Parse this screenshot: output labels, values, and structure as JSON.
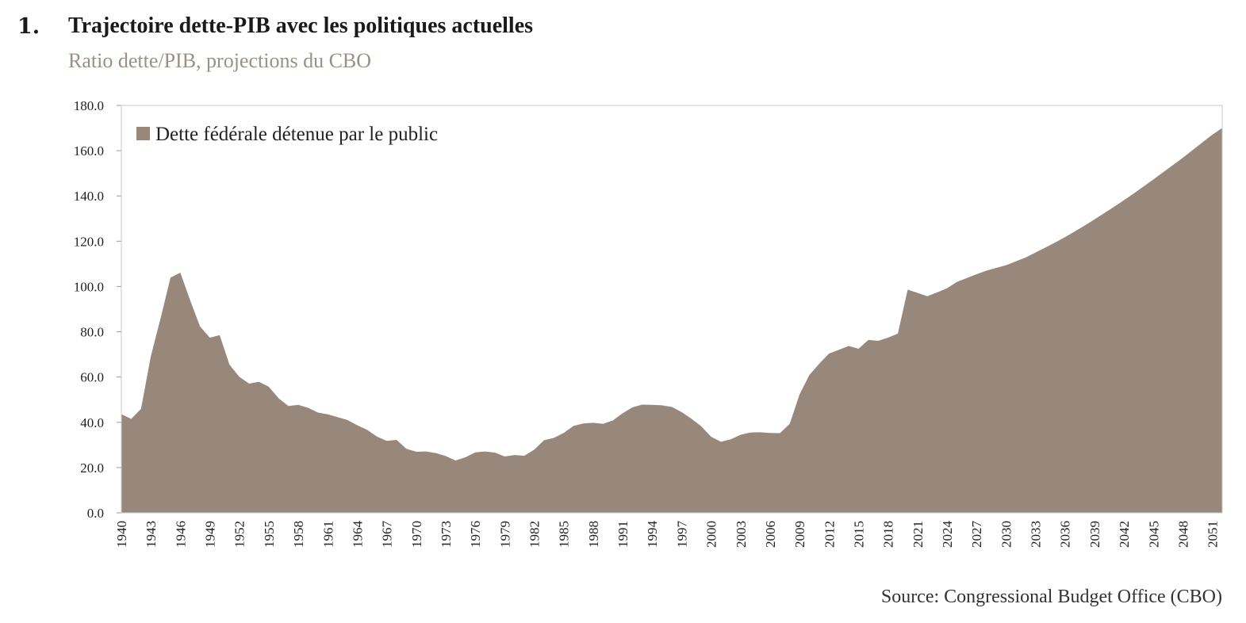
{
  "header": {
    "number": "1.",
    "title": "Trajectoire dette-PIB avec les politiques actuelles",
    "subtitle": "Ratio dette/PIB, projections du CBO",
    "source": "Source: Congressional Budget Office (CBO)"
  },
  "chart_data": {
    "type": "area",
    "title": "Trajectoire dette-PIB avec les politiques actuelles",
    "subtitle": "Ratio dette/PIB, projections du CBO",
    "xlabel": "",
    "ylabel": "",
    "ylim": [
      0,
      180
    ],
    "xlim": [
      1940,
      2052
    ],
    "yticks": [
      "0.0",
      "20.0",
      "40.0",
      "60.0",
      "80.0",
      "100.0",
      "120.0",
      "140.0",
      "160.0",
      "180.0"
    ],
    "xticks": [
      "1940",
      "1943",
      "1946",
      "1949",
      "1952",
      "1955",
      "1958",
      "1961",
      "1964",
      "1967",
      "1970",
      "1973",
      "1976",
      "1979",
      "1982",
      "1985",
      "1988",
      "1991",
      "1994",
      "1997",
      "2000",
      "2003",
      "2006",
      "2009",
      "2012",
      "2015",
      "2018",
      "2021",
      "2024",
      "2027",
      "2030",
      "2033",
      "2036",
      "2039",
      "2042",
      "2045",
      "2048",
      "2051"
    ],
    "grid": false,
    "legend_position": "top-left",
    "color": "#98877b",
    "series": [
      {
        "name": "Dette fédérale détenue par le public",
        "x": [
          1940,
          1941,
          1942,
          1943,
          1944,
          1945,
          1946,
          1947,
          1948,
          1949,
          1950,
          1951,
          1952,
          1953,
          1954,
          1955,
          1956,
          1957,
          1958,
          1959,
          1960,
          1961,
          1962,
          1963,
          1964,
          1965,
          1966,
          1967,
          1968,
          1969,
          1970,
          1971,
          1972,
          1973,
          1974,
          1975,
          1976,
          1977,
          1978,
          1979,
          1980,
          1981,
          1982,
          1983,
          1984,
          1985,
          1986,
          1987,
          1988,
          1989,
          1990,
          1991,
          1992,
          1993,
          1994,
          1995,
          1996,
          1997,
          1998,
          1999,
          2000,
          2001,
          2002,
          2003,
          2004,
          2005,
          2006,
          2007,
          2008,
          2009,
          2010,
          2011,
          2012,
          2013,
          2014,
          2015,
          2016,
          2017,
          2018,
          2019,
          2020,
          2021,
          2022,
          2023,
          2024,
          2025,
          2026,
          2027,
          2028,
          2029,
          2030,
          2031,
          2032,
          2033,
          2034,
          2035,
          2036,
          2037,
          2038,
          2039,
          2040,
          2041,
          2042,
          2043,
          2044,
          2045,
          2046,
          2047,
          2048,
          2049,
          2050,
          2051,
          2052
        ],
        "values": [
          43.6,
          41.5,
          45.9,
          69.2,
          86.1,
          103.9,
          106.1,
          93.9,
          82.4,
          77.4,
          78.5,
          65.5,
          60.1,
          57.1,
          57.9,
          55.7,
          50.6,
          47.2,
          47.7,
          46.4,
          44.3,
          43.5,
          42.3,
          41.0,
          38.7,
          36.7,
          33.7,
          31.8,
          32.2,
          28.3,
          27.0,
          27.1,
          26.4,
          25.1,
          23.1,
          24.5,
          26.7,
          27.1,
          26.6,
          24.9,
          25.5,
          25.2,
          27.9,
          32.1,
          33.1,
          35.3,
          38.4,
          39.5,
          39.8,
          39.3,
          40.8,
          44.0,
          46.6,
          47.8,
          47.7,
          47.5,
          46.8,
          44.5,
          41.6,
          38.2,
          33.6,
          31.4,
          32.5,
          34.5,
          35.5,
          35.6,
          35.3,
          35.2,
          39.3,
          52.3,
          60.9,
          65.9,
          70.4,
          72.0,
          73.7,
          72.5,
          76.4,
          76.0,
          77.4,
          79.2,
          98.6,
          97.2,
          95.7,
          97.4,
          99.2,
          102.0,
          103.7,
          105.4,
          107.0,
          108.2,
          109.4,
          111.1,
          112.8,
          115.0,
          117.2,
          119.4,
          121.8,
          124.3,
          126.9,
          129.6,
          132.4,
          135.2,
          138.1,
          141.1,
          144.2,
          147.3,
          150.5,
          153.7,
          156.9,
          160.3,
          163.7,
          167.1,
          170.0
        ]
      }
    ]
  }
}
